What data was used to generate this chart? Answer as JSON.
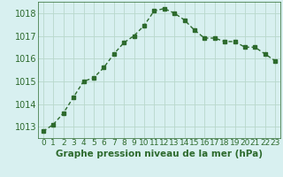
{
  "x": [
    0,
    1,
    2,
    3,
    4,
    5,
    6,
    7,
    8,
    9,
    10,
    11,
    12,
    13,
    14,
    15,
    16,
    17,
    18,
    19,
    20,
    21,
    22,
    23
  ],
  "y": [
    1012.8,
    1013.1,
    1013.6,
    1014.3,
    1015.0,
    1015.15,
    1015.6,
    1016.2,
    1016.7,
    1017.0,
    1017.45,
    1018.1,
    1018.2,
    1018.0,
    1017.7,
    1017.25,
    1016.9,
    1016.9,
    1016.75,
    1016.75,
    1016.5,
    1016.5,
    1016.2,
    1015.9
  ],
  "line_color": "#2d6a2d",
  "marker": "s",
  "marker_size": 2.5,
  "background_color": "#d8f0f0",
  "grid_color": "#b8d8cc",
  "xlabel": "Graphe pression niveau de la mer (hPa)",
  "xlabel_fontsize": 7.5,
  "ylabel_ticks": [
    1013,
    1014,
    1015,
    1016,
    1017,
    1018
  ],
  "xlim": [
    -0.5,
    23.5
  ],
  "ylim": [
    1012.5,
    1018.5
  ],
  "tick_fontsize": 6.5,
  "line_width": 1.0
}
